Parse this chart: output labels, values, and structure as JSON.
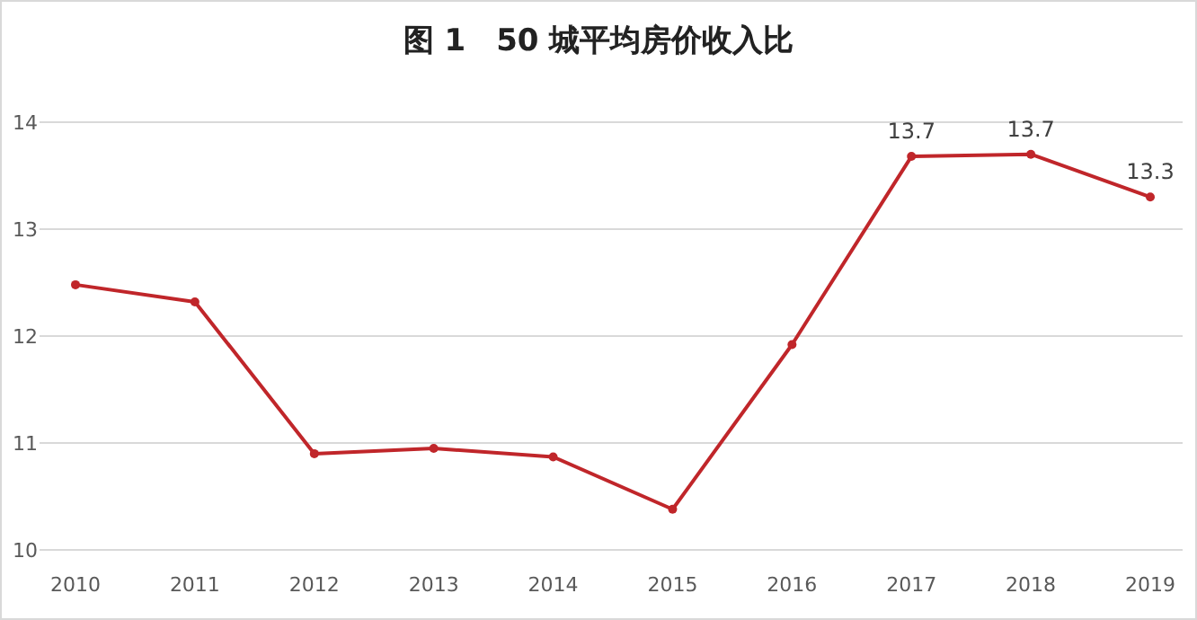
{
  "chart_data": {
    "type": "line",
    "title": "图 1　50 城平均房价收入比",
    "categories": [
      "2010",
      "2011",
      "2012",
      "2013",
      "2014",
      "2015",
      "2016",
      "2017",
      "2018",
      "2019"
    ],
    "series": [
      {
        "color": "#c0262a",
        "values": [
          12.48,
          12.32,
          10.9,
          10.95,
          10.87,
          10.38,
          11.92,
          13.68,
          13.7,
          13.3
        ],
        "value_labels": [
          null,
          null,
          null,
          null,
          null,
          null,
          null,
          "13.7",
          "13.7",
          "13.3"
        ]
      }
    ],
    "ylim": [
      10,
      14
    ],
    "yticks": [
      10,
      11,
      12,
      13,
      14
    ],
    "grid": "y",
    "marker": "circle"
  }
}
